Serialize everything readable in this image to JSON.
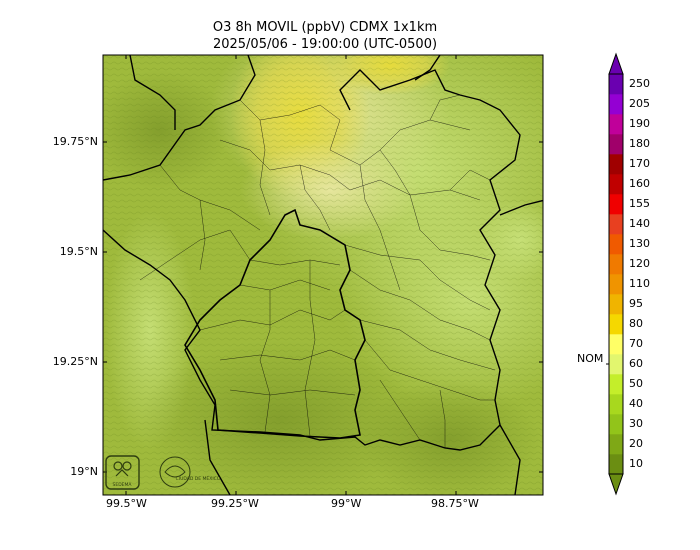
{
  "title_line1": "O3 8h MOVIL (ppbV) CDMX 1x1km",
  "title_line2": "2025/05/06 - 19:00:00 (UTC-0500)",
  "lat_ticks": [
    "19.75°N",
    "19.5°N",
    "19.25°N",
    "19°N"
  ],
  "lon_ticks": [
    "99.5°W",
    "99.25°W",
    "99°W",
    "98.75°W"
  ],
  "colorbar": {
    "labels": [
      "10",
      "20",
      "30",
      "40",
      "50",
      "60",
      "70",
      "80",
      "95",
      "110",
      "120",
      "130",
      "140",
      "155",
      "160",
      "170",
      "180",
      "190",
      "205",
      "250"
    ],
    "colors": [
      "#6b8e12",
      "#7fa816",
      "#92c41a",
      "#a8d81e",
      "#c4ee2a",
      "#e2f66e",
      "#ffff66",
      "#f5d800",
      "#f0b400",
      "#f09400",
      "#f07a00",
      "#f05a00",
      "#e84020",
      "#f00000",
      "#c00000",
      "#a00000",
      "#a0006a",
      "#c0009a",
      "#9400d3",
      "#6a00b0"
    ],
    "marker_label": "NOM",
    "marker_value": 60
  },
  "logos": [
    {
      "text": "SEDEMA",
      "icon": "sedema-logo-icon"
    },
    {
      "text": "CIUDAD DE MÉXICO",
      "icon": "cdmx-logo-icon"
    }
  ]
}
